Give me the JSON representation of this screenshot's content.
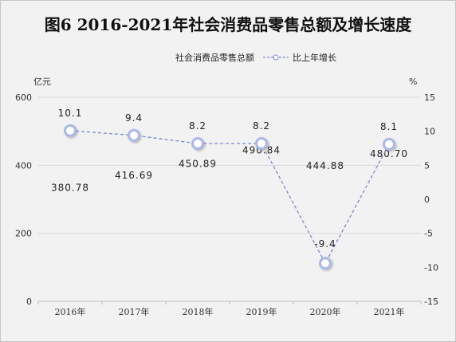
{
  "chart_data": {
    "type": "line",
    "title": "图6  2016-2021年社会消费品零售总额及增长速度",
    "categories": [
      "2016年",
      "2017年",
      "2018年",
      "2019年",
      "2020年",
      "2021年"
    ],
    "left_axis": {
      "unit": "亿元",
      "range": [
        0,
        600
      ],
      "ticks": [
        "0",
        "200",
        "400",
        "600"
      ]
    },
    "right_axis": {
      "unit": "%",
      "range": [
        -15,
        15
      ],
      "ticks": [
        "-15",
        "-10",
        "-5",
        "0",
        "5",
        "10",
        "15"
      ]
    },
    "series": [
      {
        "name": "社会消费品零售总额",
        "axis": "left",
        "values": [
          380.78,
          416.69,
          450.89,
          490.84,
          444.88,
          480.7
        ],
        "labels": [
          "380.78",
          "416.69",
          "450.89",
          "490.84",
          "444.88",
          "480.70"
        ]
      },
      {
        "name": "比上年增长",
        "axis": "right",
        "values": [
          10.1,
          9.4,
          8.2,
          8.2,
          -9.4,
          8.1
        ],
        "labels": [
          "10.1",
          "9.4",
          "8.2",
          "8.2",
          "-9.4",
          "8.1"
        ],
        "color": "#7b86d6"
      }
    ],
    "legend_position": "top-right",
    "grid": true
  }
}
